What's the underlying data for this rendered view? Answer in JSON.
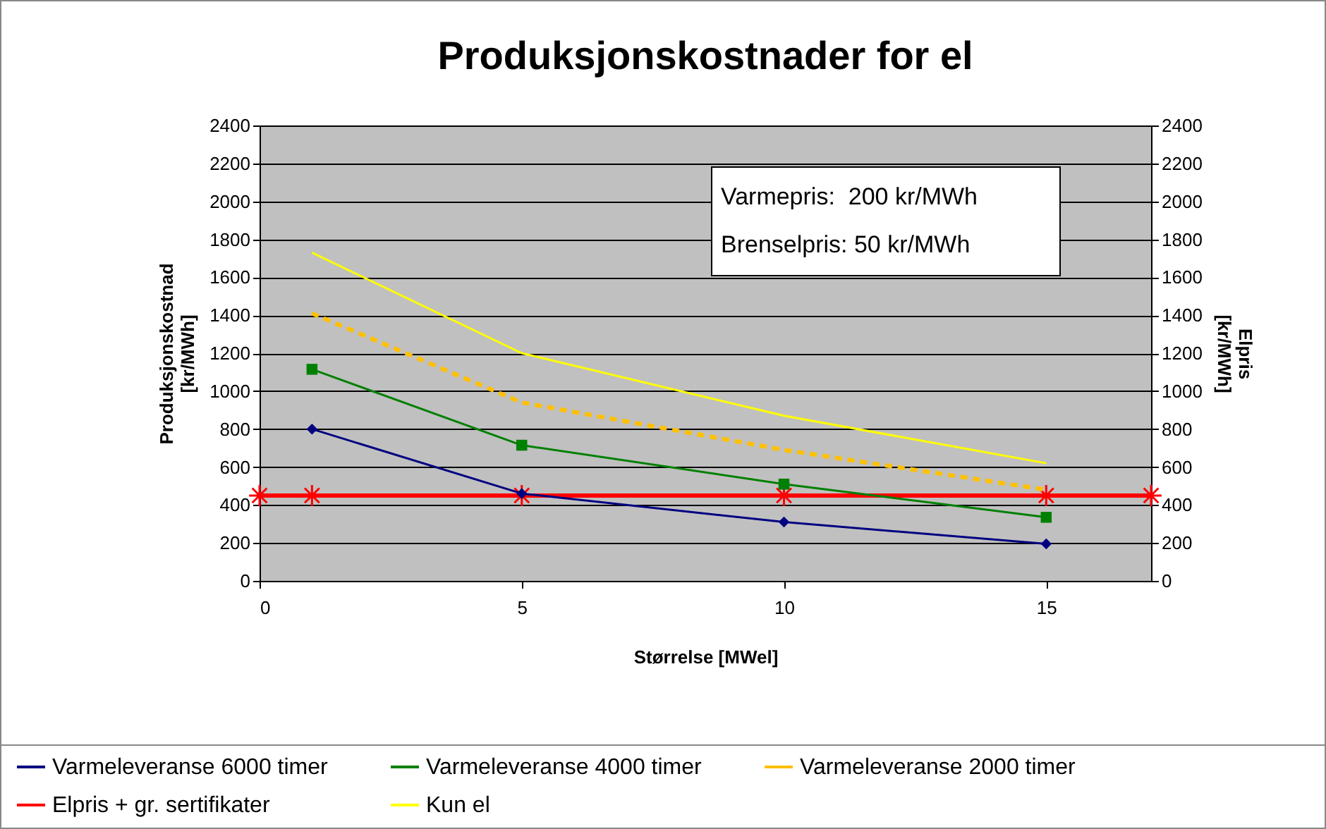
{
  "chart_data": {
    "type": "line",
    "title": "Produksjonskostnader for el",
    "xlabel": "Størrelse [MWel]",
    "ylabel": "Produksjonskostnad [kr/MWh]",
    "y2label": "Elpris [kr/MWh]",
    "annotations": [
      "Varmepris:  200 kr/MWh",
      "Brenselpris: 50 kr/MWh"
    ],
    "x": [
      1,
      5,
      10,
      15
    ],
    "series": [
      {
        "name": "Varmeleveranse 6000 timer",
        "color": "#000080",
        "marker": "diamond",
        "values": [
          800,
          460,
          310,
          195
        ]
      },
      {
        "name": "Varmeleveranse 4000 timer",
        "color": "#008000",
        "marker": "square",
        "values": [
          1115,
          715,
          510,
          335
        ]
      },
      {
        "name": "Varmeleveranse 2000 timer",
        "color": "#ffc000",
        "line_style": "dashed",
        "values": [
          1410,
          940,
          690,
          480
        ]
      },
      {
        "name": "Elpris + gr. sertifikater",
        "color": "#ff0000",
        "marker": "cross",
        "axis": "y2",
        "x": [
          0,
          1,
          5,
          10,
          15,
          17
        ],
        "values": [
          450,
          450,
          450,
          450,
          450,
          450
        ]
      },
      {
        "name": "Kun el",
        "color": "#ffff00",
        "values": [
          1730,
          1200,
          870,
          620
        ]
      }
    ],
    "xlim": [
      0,
      17
    ],
    "xticks": [
      0,
      5,
      10,
      15
    ],
    "ylim": [
      0,
      2400
    ],
    "yticks": [
      0,
      200,
      400,
      600,
      800,
      1000,
      1200,
      1400,
      1600,
      1800,
      2000,
      2200,
      2400
    ],
    "y2lim": [
      0,
      2400
    ],
    "y2ticks": [
      0,
      200,
      400,
      600,
      800,
      1000,
      1200,
      1400,
      1600,
      1800,
      2000,
      2200,
      2400
    ],
    "grid": "y",
    "legend": "bottom"
  }
}
